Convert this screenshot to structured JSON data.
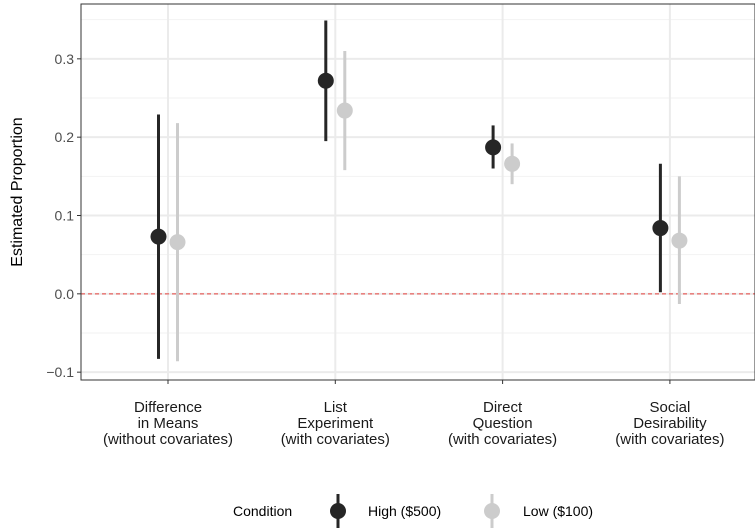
{
  "chart_data": {
    "type": "pointrange",
    "title": "",
    "xlabel": "",
    "ylabel": "Estimated Proportion",
    "ylim": [
      -0.11,
      0.37
    ],
    "yticks": [
      -0.1,
      0.0,
      0.1,
      0.2,
      0.3
    ],
    "ytick_labels": [
      "−0.1",
      "0.0",
      "0.1",
      "0.2",
      "0.3"
    ],
    "categories": [
      [
        "Difference",
        "in Means",
        "(without covariates)"
      ],
      [
        "List",
        "Experiment",
        "(with covariates)"
      ],
      [
        "Direct",
        "Question",
        "(with covariates)"
      ],
      [
        "Social",
        "Desirability",
        "(with covariates)"
      ]
    ],
    "series": [
      {
        "name": "High ($500)",
        "color": "#262626",
        "estimates": [
          0.073,
          0.272,
          0.187,
          0.084
        ],
        "lower": [
          -0.083,
          0.195,
          0.16,
          0.002
        ],
        "upper": [
          0.229,
          0.349,
          0.215,
          0.166
        ]
      },
      {
        "name": "Low ($100)",
        "color": "#cccccc",
        "estimates": [
          0.066,
          0.234,
          0.166,
          0.068
        ],
        "lower": [
          -0.086,
          0.158,
          0.14,
          -0.013
        ],
        "upper": [
          0.218,
          0.31,
          0.192,
          0.15
        ]
      }
    ],
    "reference_line": {
      "y": 0.0,
      "color": "#e8423f",
      "style": "dashed"
    },
    "grid": true,
    "legend": {
      "title": "Condition",
      "position": "bottom"
    }
  }
}
